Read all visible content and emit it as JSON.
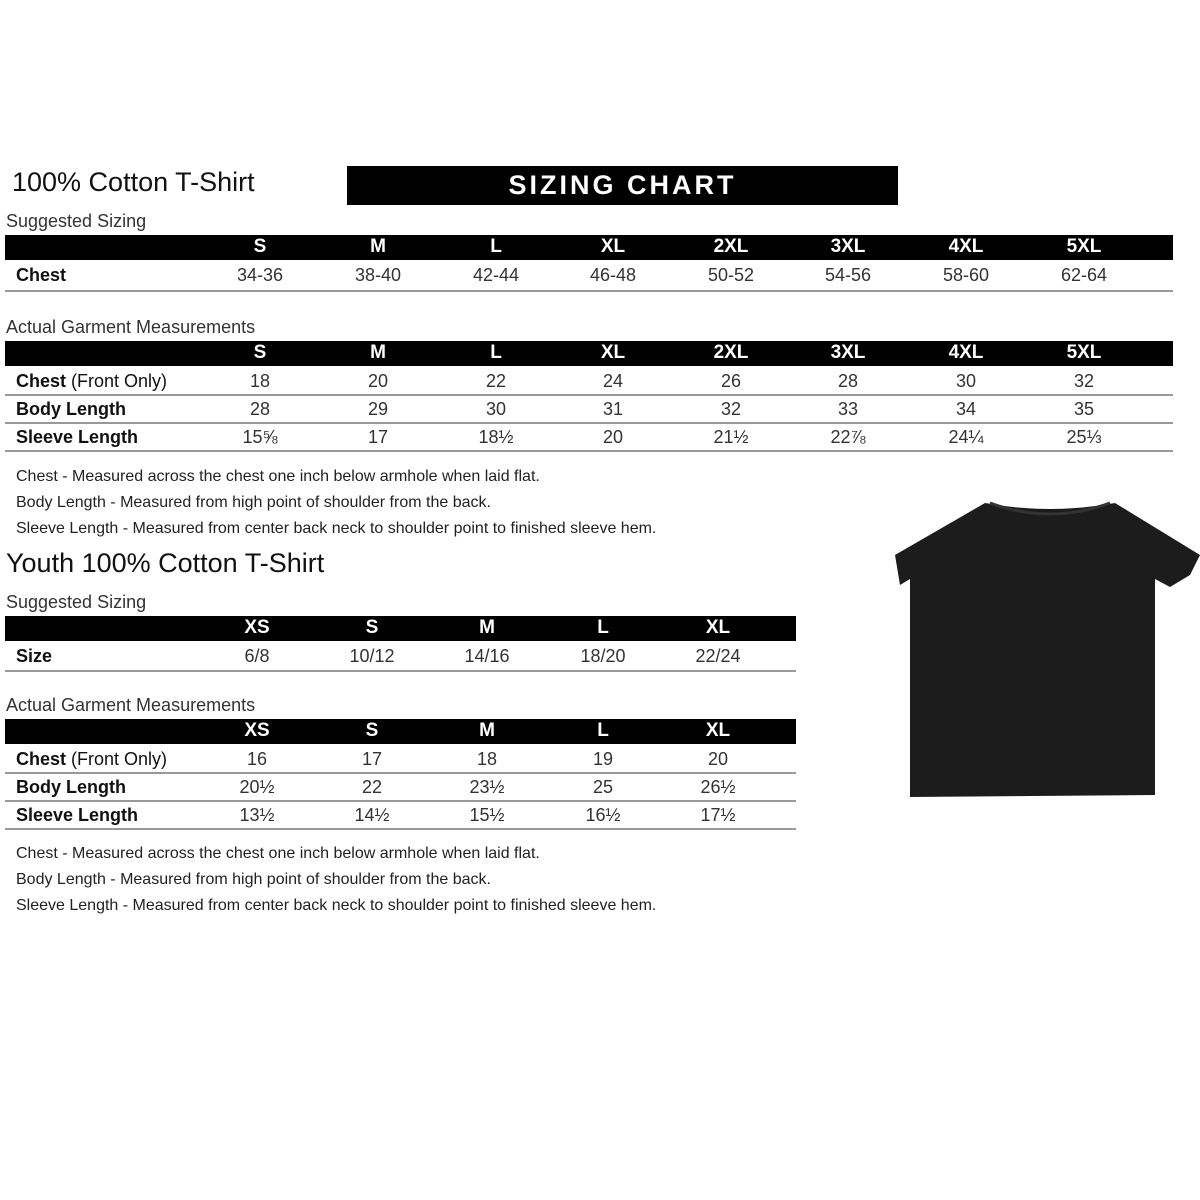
{
  "adult": {
    "title": "100% Cotton T-Shirt",
    "banner": "SIZING CHART",
    "suggested_label": "Suggested Sizing",
    "sizes": [
      "S",
      "M",
      "L",
      "XL",
      "2XL",
      "3XL",
      "4XL",
      "5XL"
    ],
    "suggested_rows": [
      {
        "label": "Chest",
        "values": [
          "34-36",
          "38-40",
          "42-44",
          "46-48",
          "50-52",
          "54-56",
          "58-60",
          "62-64"
        ]
      }
    ],
    "actual_label": "Actual Garment Measurements",
    "actual_rows": [
      {
        "label": "Chest",
        "label_note": "(Front Only)",
        "values": [
          "18",
          "20",
          "22",
          "24",
          "26",
          "28",
          "30",
          "32"
        ]
      },
      {
        "label": "Body Length",
        "label_note": "",
        "values": [
          "28",
          "29",
          "30",
          "31",
          "32",
          "33",
          "34",
          "35"
        ]
      },
      {
        "label": "Sleeve Length",
        "label_note": "",
        "values": [
          "15⅝",
          "17",
          "18½",
          "20",
          "21½",
          "22⅞",
          "24¼",
          "25⅓"
        ]
      }
    ],
    "notes": [
      "Chest - Measured across the chest one inch below armhole when laid flat.",
      "Body Length - Measured from high point of shoulder from the back.",
      "Sleeve Length - Measured from center back neck to shoulder point to finished sleeve hem."
    ]
  },
  "youth": {
    "title": "Youth 100% Cotton T-Shirt",
    "suggested_label": "Suggested Sizing",
    "sizes": [
      "XS",
      "S",
      "M",
      "L",
      "XL"
    ],
    "suggested_rows": [
      {
        "label": "Size",
        "values": [
          "6/8",
          "10/12",
          "14/16",
          "18/20",
          "22/24"
        ]
      }
    ],
    "actual_label": "Actual Garment Measurements",
    "actual_rows": [
      {
        "label": "Chest",
        "label_note": "(Front Only)",
        "values": [
          "16",
          "17",
          "18",
          "19",
          "20"
        ]
      },
      {
        "label": "Body Length",
        "label_note": "",
        "values": [
          "20½",
          "22",
          "23½",
          "25",
          "26½"
        ]
      },
      {
        "label": "Sleeve Length",
        "label_note": "",
        "values": [
          "13½",
          "14½",
          "15½",
          "16½",
          "17½"
        ]
      }
    ],
    "notes": [
      "Chest - Measured across the chest one inch below armhole when laid flat.",
      "Body Length - Measured from high point of shoulder from the back.",
      "Sleeve Length - Measured from center back neck to shoulder point to finished sleeve hem."
    ]
  },
  "shirt": {
    "color": "#1a1a1a",
    "icon": "t-shirt-image"
  }
}
